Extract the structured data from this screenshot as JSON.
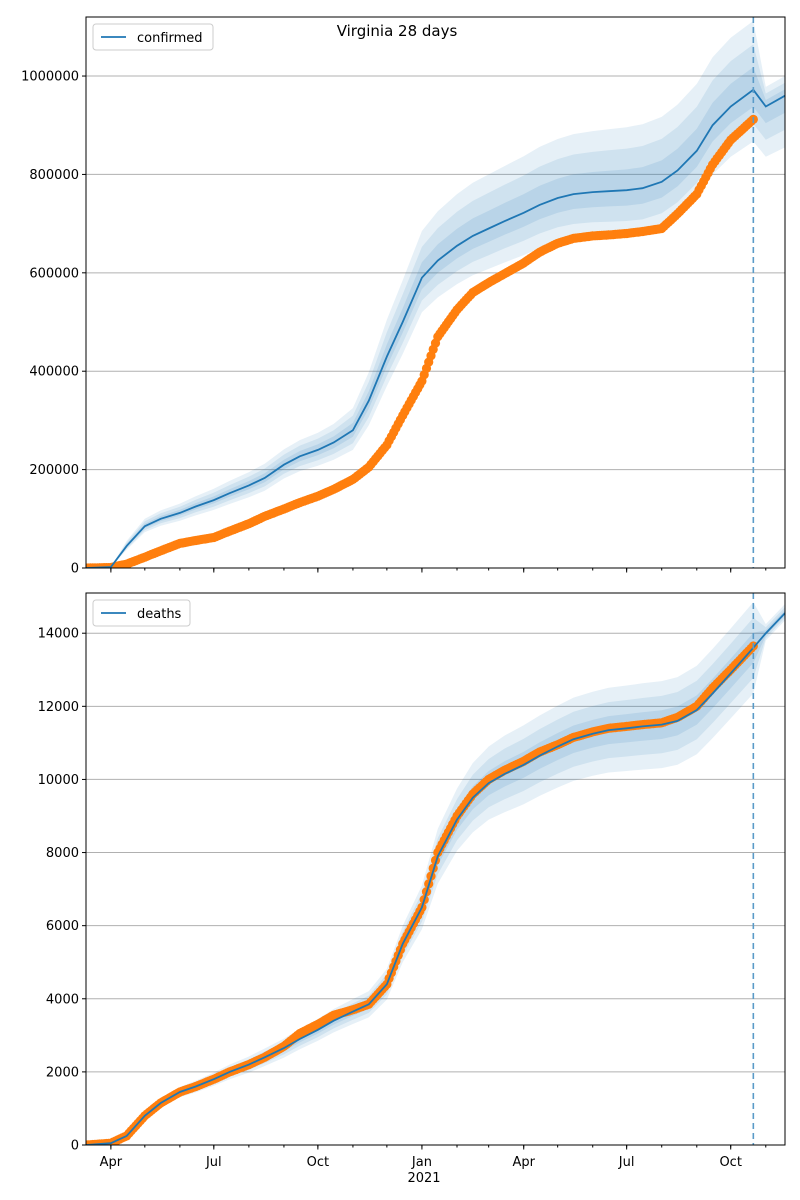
{
  "figure": {
    "title": "Virginia 28 days",
    "xlabel_year": "2021"
  },
  "colors": {
    "model": "#1f77b4",
    "observed": "#ff7f0e",
    "band": "#1f77b4",
    "grid": "#b0b0b0",
    "forecast_line": "#5a9bc8"
  },
  "chart_data": [
    {
      "type": "line",
      "legend": "confirmed",
      "legend_position": "top-left",
      "grid": "horizontal",
      "x_range": [
        "2020-03-10",
        "2021-11-18"
      ],
      "forecast_start": "2021-10-21",
      "ylim": [
        0,
        1120000
      ],
      "yticks": [
        0,
        200000,
        400000,
        600000,
        800000,
        1000000
      ],
      "ytick_labels": [
        "0",
        "200000",
        "400000",
        "600000",
        "800000",
        "1000000"
      ],
      "xticks": [
        {
          "date": "2020-04-01",
          "label": "Apr"
        },
        {
          "date": "2020-07-01",
          "label": "Jul"
        },
        {
          "date": "2020-10-01",
          "label": "Oct"
        },
        {
          "date": "2021-01-01",
          "label": "Jan"
        },
        {
          "date": "2021-04-01",
          "label": "Apr"
        },
        {
          "date": "2021-07-01",
          "label": "Jul"
        },
        {
          "date": "2021-10-01",
          "label": "Oct"
        }
      ],
      "model": {
        "name": "confirmed",
        "x": [
          "2020-03-10",
          "2020-04-01",
          "2020-04-15",
          "2020-05-01",
          "2020-05-15",
          "2020-06-01",
          "2020-06-15",
          "2020-07-01",
          "2020-07-15",
          "2020-08-01",
          "2020-08-15",
          "2020-09-01",
          "2020-09-15",
          "2020-10-01",
          "2020-10-15",
          "2020-11-01",
          "2020-11-15",
          "2020-12-01",
          "2020-12-15",
          "2021-01-01",
          "2021-01-15",
          "2021-02-01",
          "2021-02-15",
          "2021-03-01",
          "2021-03-15",
          "2021-04-01",
          "2021-04-15",
          "2021-05-01",
          "2021-05-15",
          "2021-06-01",
          "2021-06-15",
          "2021-07-01",
          "2021-07-15",
          "2021-08-01",
          "2021-08-15",
          "2021-09-01",
          "2021-09-15",
          "2021-10-01",
          "2021-10-21",
          "2021-11-01",
          "2021-11-18"
        ],
        "y": [
          0,
          2000,
          45000,
          85000,
          100000,
          112000,
          125000,
          138000,
          152000,
          168000,
          183000,
          210000,
          227000,
          240000,
          255000,
          280000,
          340000,
          430000,
          500000,
          590000,
          625000,
          655000,
          675000,
          690000,
          705000,
          722000,
          738000,
          752000,
          760000,
          764000,
          766000,
          768000,
          772000,
          785000,
          808000,
          848000,
          900000,
          938000,
          972000,
          938000,
          960000
        ],
        "band_widths_low": [
          0,
          0,
          8000,
          12000,
          14000,
          16000,
          18000,
          20000,
          22000,
          24000,
          26000,
          28000,
          30000,
          32000,
          35000,
          40000,
          50000,
          60000,
          65000,
          70000,
          75000,
          78000,
          80000,
          82000,
          84000,
          86000,
          88000,
          90000,
          92000,
          93000,
          94000,
          95000,
          96000,
          97000,
          98000,
          99000,
          100000,
          102000,
          105000,
          102000,
          105000
        ],
        "band_widths_high": [
          0,
          0,
          10000,
          15000,
          17000,
          19000,
          21000,
          23000,
          25000,
          27000,
          29000,
          31000,
          33000,
          35000,
          38000,
          45000,
          58000,
          75000,
          85000,
          95000,
          100000,
          105000,
          108000,
          110000,
          112000,
          115000,
          118000,
          120000,
          122000,
          124000,
          126000,
          128000,
          130000,
          132000,
          134000,
          136000,
          138000,
          140000,
          140000,
          40000,
          40000
        ]
      },
      "observed": {
        "x": [
          "2020-03-10",
          "2020-04-01",
          "2020-04-15",
          "2020-05-01",
          "2020-05-15",
          "2020-06-01",
          "2020-06-15",
          "2020-07-01",
          "2020-07-15",
          "2020-08-01",
          "2020-08-15",
          "2020-09-01",
          "2020-09-15",
          "2020-10-01",
          "2020-10-15",
          "2020-11-01",
          "2020-11-15",
          "2020-12-01",
          "2020-12-15",
          "2021-01-01",
          "2021-01-15",
          "2021-02-01",
          "2021-02-15",
          "2021-03-01",
          "2021-03-15",
          "2021-04-01",
          "2021-04-15",
          "2021-05-01",
          "2021-05-15",
          "2021-06-01",
          "2021-06-15",
          "2021-07-01",
          "2021-07-15",
          "2021-08-01",
          "2021-08-15",
          "2021-09-01",
          "2021-09-15",
          "2021-10-01",
          "2021-10-21"
        ],
        "y": [
          0,
          1000,
          8000,
          22000,
          35000,
          50000,
          56000,
          62000,
          75000,
          90000,
          105000,
          120000,
          133000,
          146000,
          160000,
          180000,
          205000,
          250000,
          310000,
          380000,
          470000,
          525000,
          560000,
          580000,
          598000,
          620000,
          642000,
          660000,
          670000,
          675000,
          677000,
          680000,
          684000,
          690000,
          720000,
          760000,
          820000,
          870000,
          912000
        ]
      }
    },
    {
      "type": "line",
      "legend": "deaths",
      "legend_position": "top-left",
      "grid": "horizontal",
      "x_range": [
        "2020-03-10",
        "2021-11-18"
      ],
      "forecast_start": "2021-10-21",
      "ylim": [
        0,
        15100
      ],
      "yticks": [
        0,
        2000,
        4000,
        6000,
        8000,
        10000,
        12000,
        14000
      ],
      "ytick_labels": [
        "0",
        "2000",
        "4000",
        "6000",
        "8000",
        "10000",
        "12000",
        "14000"
      ],
      "xticks": [
        {
          "date": "2020-04-01",
          "label": "Apr"
        },
        {
          "date": "2020-07-01",
          "label": "Jul"
        },
        {
          "date": "2020-10-01",
          "label": "Oct"
        },
        {
          "date": "2021-01-01",
          "label": "Jan"
        },
        {
          "date": "2021-04-01",
          "label": "Apr"
        },
        {
          "date": "2021-07-01",
          "label": "Jul"
        },
        {
          "date": "2021-10-01",
          "label": "Oct"
        }
      ],
      "model": {
        "name": "deaths",
        "x": [
          "2020-03-10",
          "2020-04-01",
          "2020-04-15",
          "2020-05-01",
          "2020-05-15",
          "2020-06-01",
          "2020-06-15",
          "2020-07-01",
          "2020-07-15",
          "2020-08-01",
          "2020-08-15",
          "2020-09-01",
          "2020-09-15",
          "2020-10-01",
          "2020-10-15",
          "2020-11-01",
          "2020-11-15",
          "2020-12-01",
          "2020-12-15",
          "2021-01-01",
          "2021-01-15",
          "2021-02-01",
          "2021-02-15",
          "2021-03-01",
          "2021-03-15",
          "2021-04-01",
          "2021-04-15",
          "2021-05-01",
          "2021-05-15",
          "2021-06-01",
          "2021-06-15",
          "2021-07-01",
          "2021-07-15",
          "2021-08-01",
          "2021-08-15",
          "2021-09-01",
          "2021-09-15",
          "2021-10-01",
          "2021-10-21",
          "2021-11-01",
          "2021-11-18"
        ],
        "y": [
          0,
          50,
          250,
          800,
          1150,
          1450,
          1600,
          1800,
          2000,
          2200,
          2400,
          2650,
          2900,
          3150,
          3400,
          3650,
          3850,
          4400,
          5500,
          6500,
          7900,
          8900,
          9500,
          9900,
          10150,
          10400,
          10650,
          10900,
          11100,
          11250,
          11350,
          11400,
          11450,
          11500,
          11600,
          11900,
          12350,
          12900,
          13600,
          14000,
          14550
        ],
        "band_widths_low": [
          0,
          10,
          40,
          90,
          120,
          140,
          160,
          180,
          200,
          220,
          240,
          260,
          280,
          300,
          320,
          340,
          360,
          420,
          500,
          600,
          750,
          850,
          950,
          1000,
          1050,
          1080,
          1100,
          1120,
          1140,
          1150,
          1160,
          1170,
          1180,
          1190,
          1200,
          1210,
          1220,
          1230,
          1250,
          200,
          200
        ],
        "band_widths_high": [
          0,
          10,
          40,
          90,
          120,
          140,
          160,
          180,
          200,
          220,
          240,
          260,
          280,
          300,
          320,
          340,
          360,
          420,
          500,
          600,
          750,
          850,
          950,
          1000,
          1050,
          1080,
          1100,
          1120,
          1140,
          1150,
          1160,
          1170,
          1180,
          1190,
          1200,
          1210,
          1220,
          1230,
          1250,
          250,
          250
        ]
      },
      "observed": {
        "x": [
          "2020-03-10",
          "2020-04-01",
          "2020-04-15",
          "2020-05-01",
          "2020-05-15",
          "2020-06-01",
          "2020-06-15",
          "2020-07-01",
          "2020-07-15",
          "2020-08-01",
          "2020-08-15",
          "2020-09-01",
          "2020-09-15",
          "2020-10-01",
          "2020-10-15",
          "2020-11-01",
          "2020-11-15",
          "2020-12-01",
          "2020-12-15",
          "2021-01-01",
          "2021-01-15",
          "2021-02-01",
          "2021-02-15",
          "2021-03-01",
          "2021-03-15",
          "2021-04-01",
          "2021-04-15",
          "2021-05-01",
          "2021-05-15",
          "2021-06-01",
          "2021-06-15",
          "2021-07-01",
          "2021-07-15",
          "2021-08-01",
          "2021-08-15",
          "2021-09-01",
          "2021-09-15",
          "2021-10-01",
          "2021-10-21"
        ],
        "y": [
          0,
          50,
          250,
          800,
          1150,
          1450,
          1600,
          1800,
          2000,
          2200,
          2400,
          2700,
          3050,
          3300,
          3550,
          3700,
          3850,
          4400,
          5500,
          6500,
          8000,
          9000,
          9600,
          10000,
          10250,
          10500,
          10750,
          10950,
          11150,
          11300,
          11400,
          11450,
          11500,
          11550,
          11700,
          12000,
          12500,
          13000,
          13650
        ]
      }
    }
  ]
}
